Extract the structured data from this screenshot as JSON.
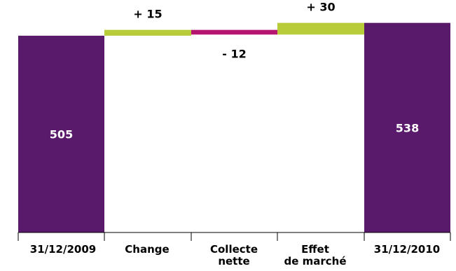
{
  "chart_data": {
    "type": "bar",
    "subtype": "waterfall",
    "categories": [
      "31/12/2009",
      "Change",
      "Collecte nette",
      "Effet de marché",
      "31/12/2010"
    ],
    "category_lines": [
      [
        "31/12/2009"
      ],
      [
        "Change"
      ],
      [
        "Collecte",
        "nette"
      ],
      [
        "Effet",
        "de marché"
      ],
      [
        "31/12/2010"
      ]
    ],
    "steps": [
      {
        "kind": "total",
        "value": 505,
        "label": "505"
      },
      {
        "kind": "delta",
        "value": 15,
        "label": "+ 15"
      },
      {
        "kind": "delta",
        "value": -12,
        "label": "- 12"
      },
      {
        "kind": "delta",
        "value": 30,
        "label": "+ 30"
      },
      {
        "kind": "total",
        "value": 538,
        "label": "538"
      }
    ],
    "colors": {
      "total": "#5a1a6b",
      "increase": "#b8cc3a",
      "decrease": "#b5156e",
      "axis": "#000000"
    }
  }
}
